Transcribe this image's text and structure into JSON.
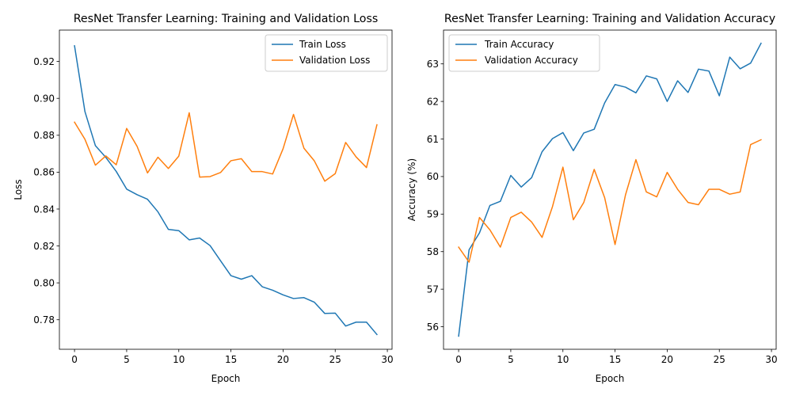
{
  "chart_data": [
    {
      "type": "line",
      "title": "ResNet Transfer Learning: Training and Validation Loss",
      "xlabel": "Epoch",
      "ylabel": "Loss",
      "xlim": [
        -1.45,
        30.45
      ],
      "ylim": [
        0.764,
        0.937
      ],
      "xticks": [
        0,
        5,
        10,
        15,
        20,
        25,
        30
      ],
      "yticks": [
        0.78,
        0.8,
        0.82,
        0.84,
        0.86,
        0.88,
        0.9,
        0.92
      ],
      "tick_format": 2,
      "grid": false,
      "legend": "upper right",
      "x": [
        0,
        1,
        2,
        3,
        4,
        5,
        6,
        7,
        8,
        9,
        10,
        11,
        12,
        13,
        14,
        15,
        16,
        17,
        18,
        19,
        20,
        21,
        22,
        23,
        24,
        25,
        26,
        27,
        28,
        29
      ],
      "series": [
        {
          "name": "Train Loss",
          "color": "#1f77b4",
          "values": [
            0.9285,
            0.8928,
            0.8744,
            0.868,
            0.8604,
            0.8508,
            0.8478,
            0.8453,
            0.8385,
            0.829,
            0.8283,
            0.8233,
            0.8243,
            0.8202,
            0.812,
            0.8039,
            0.802,
            0.8039,
            0.7979,
            0.796,
            0.7935,
            0.7915,
            0.792,
            0.7895,
            0.7834,
            0.7836,
            0.7766,
            0.7787,
            0.7787,
            0.772
          ]
        },
        {
          "name": "Validation Loss",
          "color": "#ff7f0e",
          "values": [
            0.8871,
            0.8778,
            0.8638,
            0.8688,
            0.864,
            0.8837,
            0.874,
            0.8596,
            0.8681,
            0.862,
            0.8687,
            0.8922,
            0.8573,
            0.8576,
            0.8598,
            0.8662,
            0.8673,
            0.8603,
            0.8603,
            0.859,
            0.8727,
            0.8913,
            0.873,
            0.8661,
            0.8551,
            0.8592,
            0.8761,
            0.8683,
            0.8625,
            0.8857
          ]
        }
      ]
    },
    {
      "type": "line",
      "title": "ResNet Transfer Learning: Training and Validation Accuracy",
      "xlabel": "Epoch",
      "ylabel": "Accuracy (%)",
      "xlim": [
        -1.45,
        30.45
      ],
      "ylim": [
        55.4,
        63.9
      ],
      "xticks": [
        0,
        5,
        10,
        15,
        20,
        25,
        30
      ],
      "yticks": [
        56,
        57,
        58,
        59,
        60,
        61,
        62,
        63
      ],
      "tick_format": 0,
      "grid": false,
      "legend": "upper left",
      "x": [
        0,
        1,
        2,
        3,
        4,
        5,
        6,
        7,
        8,
        9,
        10,
        11,
        12,
        13,
        14,
        15,
        16,
        17,
        18,
        19,
        20,
        21,
        22,
        23,
        24,
        25,
        26,
        27,
        28,
        29
      ],
      "series": [
        {
          "name": "Train Accuracy",
          "color": "#1f77b4",
          "values": [
            55.75,
            58.05,
            58.5,
            59.23,
            59.34,
            60.03,
            59.72,
            59.97,
            60.66,
            61.01,
            61.17,
            60.69,
            61.16,
            61.26,
            61.96,
            62.45,
            62.38,
            62.23,
            62.68,
            62.6,
            62.0,
            62.55,
            62.24,
            62.86,
            62.81,
            62.15,
            63.18,
            62.87,
            63.02,
            63.55
          ]
        },
        {
          "name": "Validation Accuracy",
          "color": "#ff7f0e",
          "values": [
            58.12,
            57.72,
            58.91,
            58.58,
            58.12,
            58.91,
            59.05,
            58.79,
            58.38,
            59.2,
            60.25,
            58.85,
            59.31,
            60.19,
            59.44,
            58.19,
            59.51,
            60.45,
            59.59,
            59.46,
            60.11,
            59.66,
            59.31,
            59.25,
            59.66,
            59.66,
            59.53,
            59.59,
            60.85,
            60.98
          ]
        }
      ]
    }
  ]
}
